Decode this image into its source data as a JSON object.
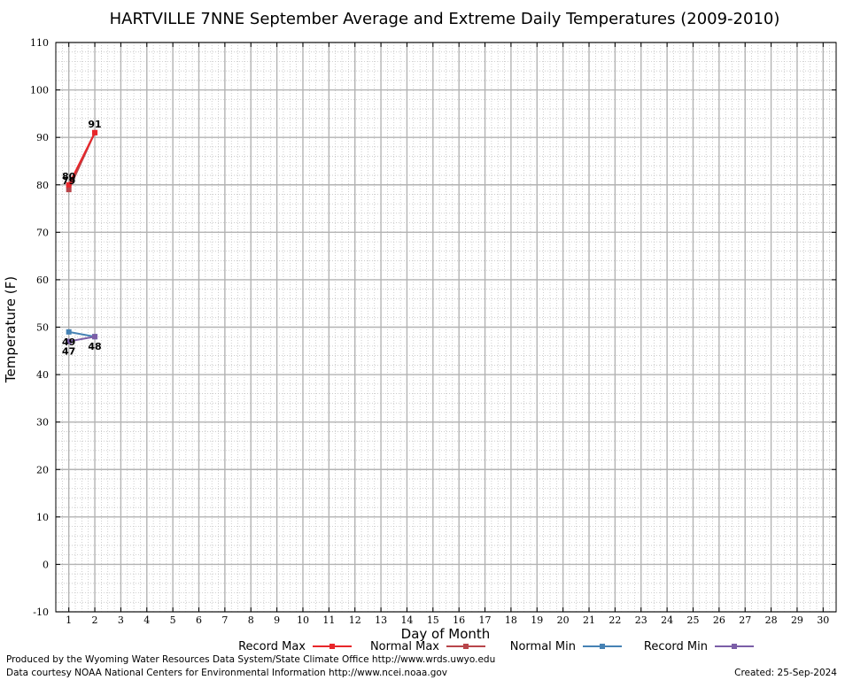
{
  "chart_data": {
    "type": "line",
    "title": "HARTVILLE 7NNE September Average and Extreme Daily Temperatures (2009-2010)",
    "xlabel": "Day of Month",
    "ylabel": "Temperature (F)",
    "xlim": [
      0.5,
      30.5
    ],
    "ylim": [
      -10,
      110
    ],
    "x_ticks": [
      1,
      2,
      3,
      4,
      5,
      6,
      7,
      8,
      9,
      10,
      11,
      12,
      13,
      14,
      15,
      16,
      17,
      18,
      19,
      20,
      21,
      22,
      23,
      24,
      25,
      26,
      27,
      28,
      29,
      30
    ],
    "y_ticks": [
      -10,
      0,
      10,
      20,
      30,
      40,
      50,
      60,
      70,
      80,
      90,
      100,
      110
    ],
    "grid": true,
    "legend_position": "bottom",
    "series": [
      {
        "name": "Record Max",
        "color": "#e8262a",
        "x": [
          1,
          2
        ],
        "values": [
          80,
          91
        ],
        "labels": [
          "80",
          "91"
        ],
        "label_pos": [
          "above",
          "above"
        ]
      },
      {
        "name": "Normal Max",
        "color": "#b8454a",
        "x": [
          1,
          2
        ],
        "values": [
          79,
          91
        ],
        "labels": [
          "79",
          ""
        ],
        "label_pos": [
          "above",
          "above"
        ]
      },
      {
        "name": "Normal Min",
        "color": "#4682b4",
        "x": [
          1,
          2
        ],
        "values": [
          49,
          48
        ],
        "labels": [
          "49",
          ""
        ],
        "label_pos": [
          "below",
          "below"
        ]
      },
      {
        "name": "Record Min",
        "color": "#7b5ea7",
        "x": [
          1,
          2
        ],
        "values": [
          47,
          48
        ],
        "labels": [
          "47",
          "48"
        ],
        "label_pos": [
          "below",
          "below"
        ]
      }
    ]
  },
  "footer": {
    "produced_by": "Produced by the Wyoming Water Resources Data System/State Climate Office http://www.wrds.uwyo.edu",
    "data_courtesy": "Data courtesy NOAA National Centers for Environmental Information http://www.ncei.noaa.gov",
    "created": "Created: 25-Sep-2024"
  }
}
